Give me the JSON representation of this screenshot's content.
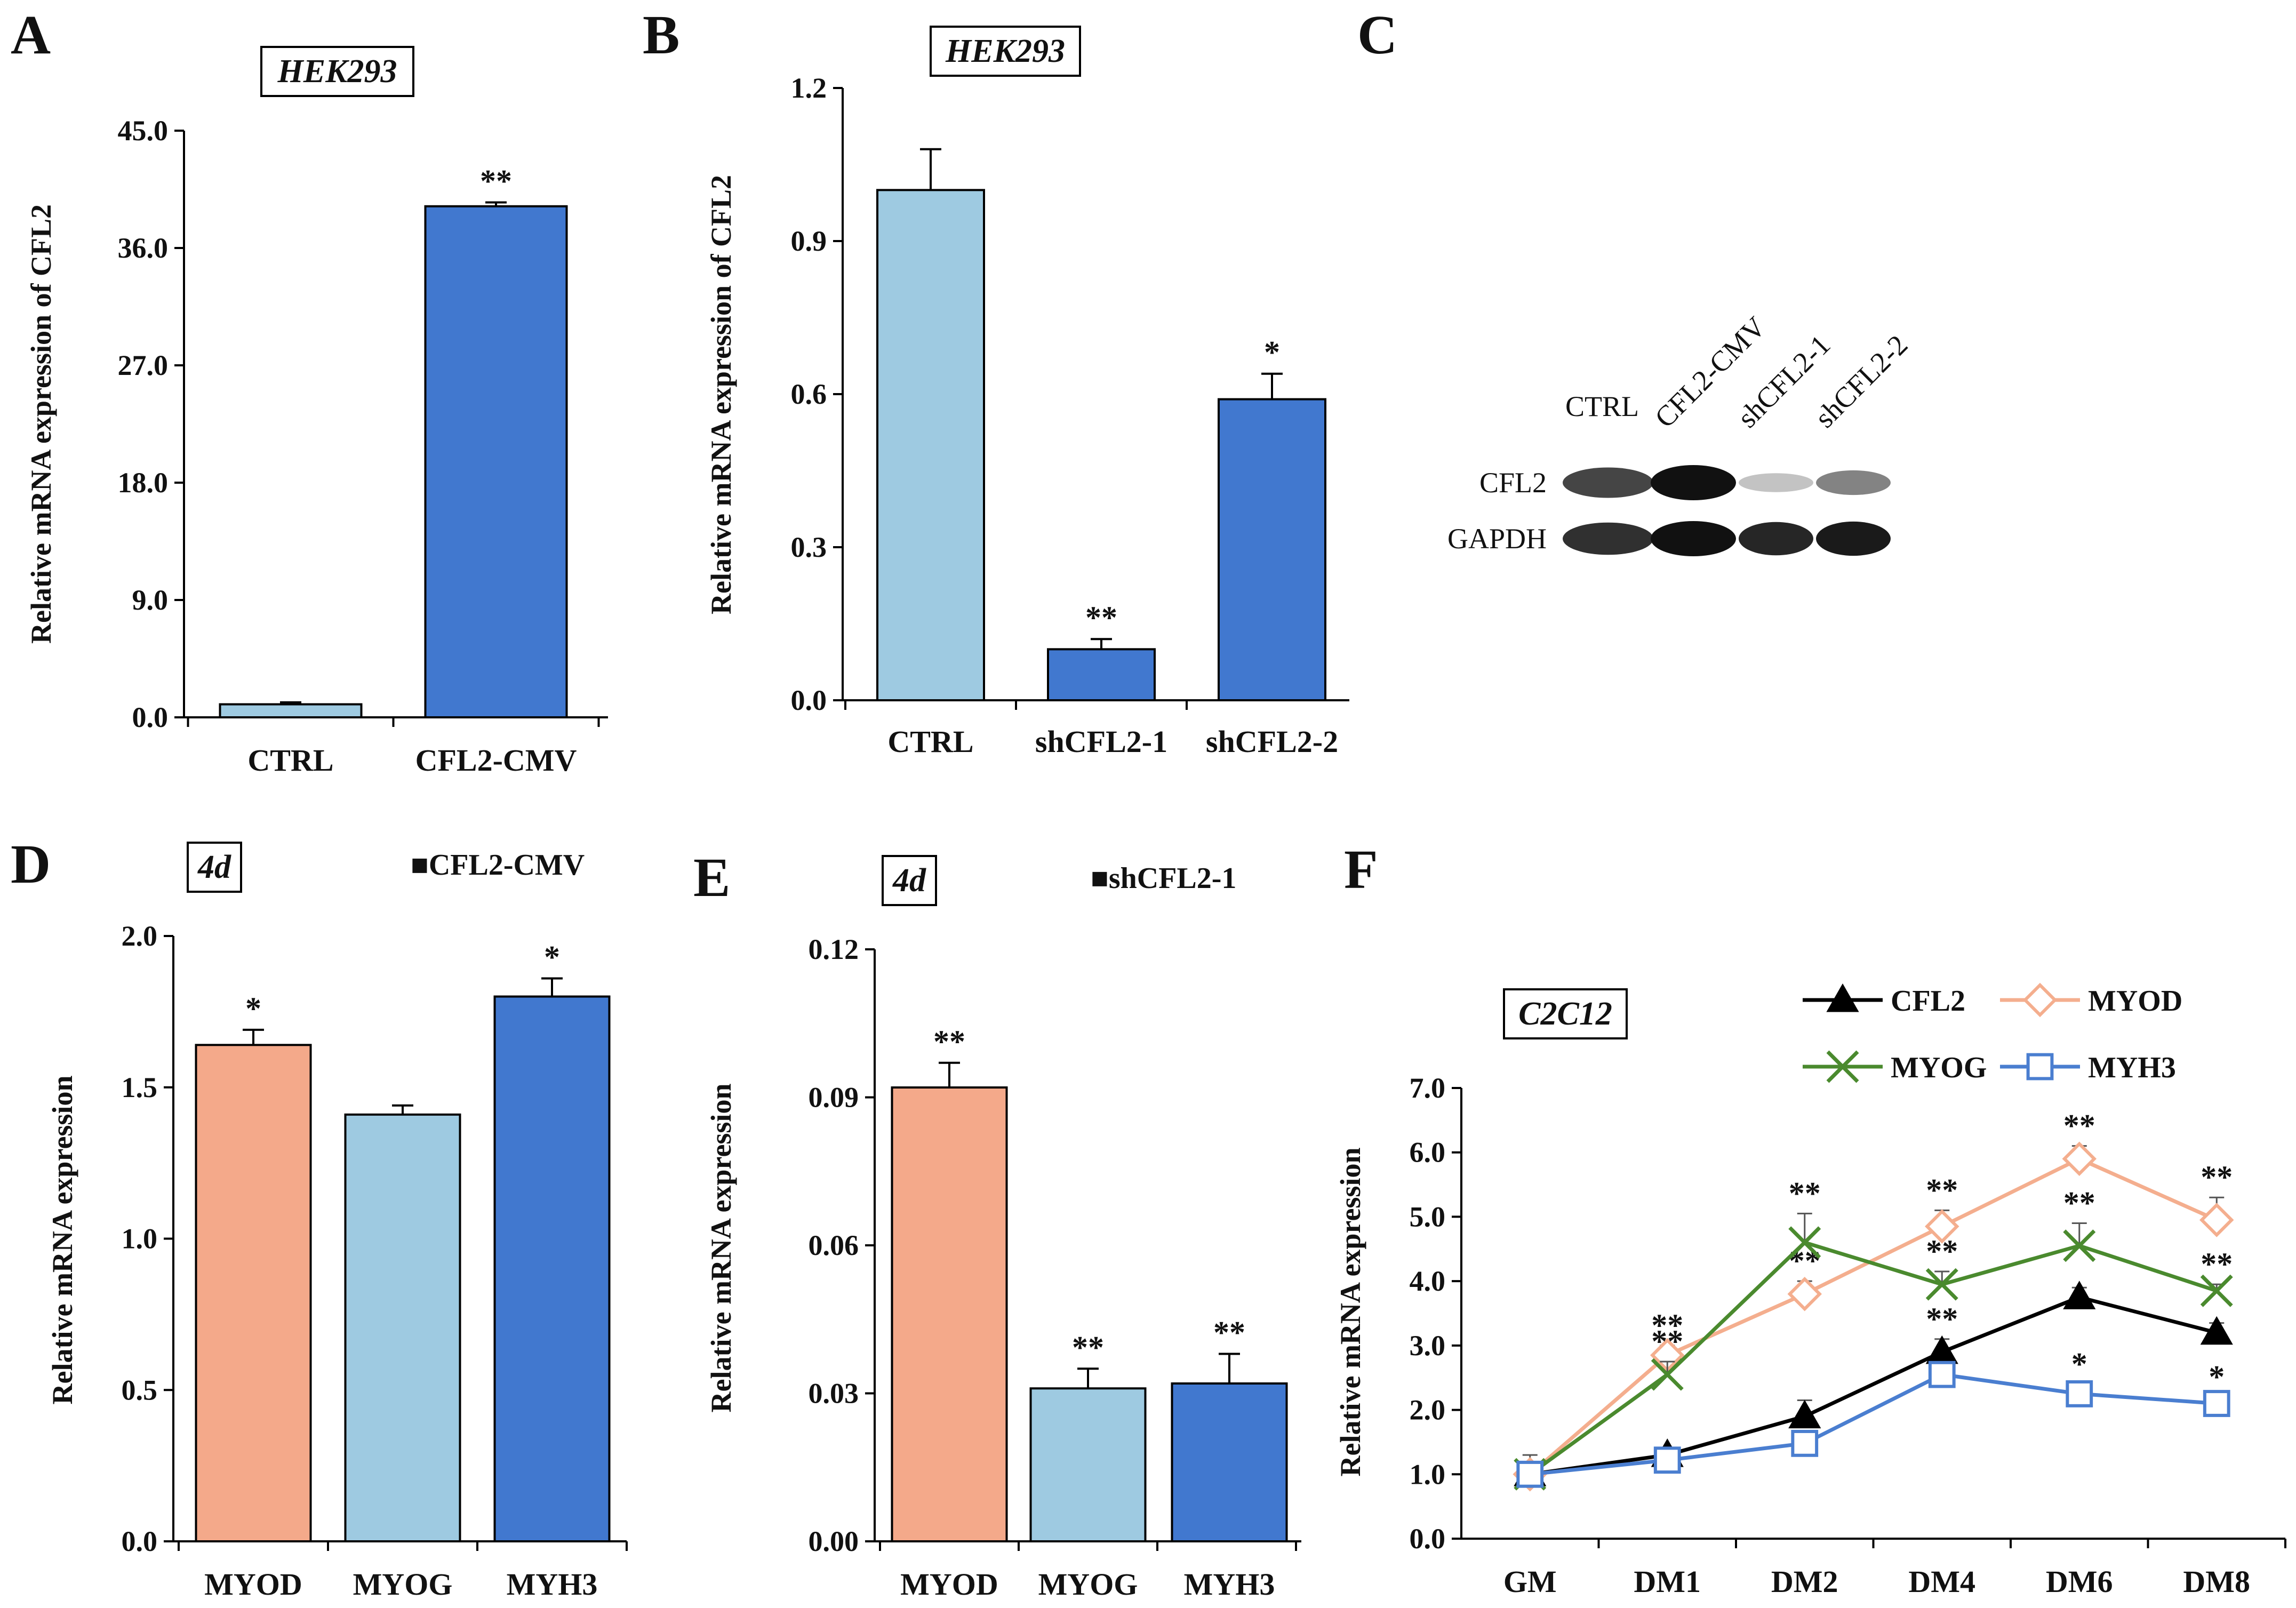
{
  "colors": {
    "light_blue": "#9ecae1",
    "dark_blue": "#4178cf",
    "salmon": "#f4a98a",
    "black": "#000000",
    "green": "#4a8a2e",
    "orange_line": "#f4ae8e",
    "blue_line": "#4a7ed0",
    "band": "#111111"
  },
  "chart_data": [
    {
      "id": "A",
      "type": "bar",
      "cell_label": "HEK293",
      "ylabel": "Relative mRNA expression of CFL2",
      "ylim": [
        0,
        45
      ],
      "yticks": [
        "0.0",
        "9.0",
        "18.0",
        "27.0",
        "36.0",
        "45.0"
      ],
      "categories": [
        "CTRL",
        "CFL2-CMV"
      ],
      "values": [
        1.0,
        39.2
      ],
      "errors": [
        0.15,
        0.3
      ],
      "colors": [
        "light_blue",
        "dark_blue"
      ],
      "significance": [
        "",
        "**"
      ]
    },
    {
      "id": "B",
      "type": "bar",
      "cell_label": "HEK293",
      "ylabel": "Relative mRNA expression of CFL2",
      "ylim": [
        0,
        1.2
      ],
      "yticks": [
        "0.0",
        "0.3",
        "0.6",
        "0.9",
        "1.2"
      ],
      "categories": [
        "CTRL",
        "shCFL2-1",
        "shCFL2-2"
      ],
      "values": [
        1.0,
        0.1,
        0.59
      ],
      "errors": [
        0.08,
        0.02,
        0.05
      ],
      "colors": [
        "light_blue",
        "dark_blue",
        "dark_blue"
      ],
      "significance": [
        "",
        "**",
        "*"
      ]
    },
    {
      "id": "D",
      "type": "bar",
      "cell_label": "4d",
      "legend": "■CFL2-CMV",
      "ylabel": "Relative mRNA expression",
      "ylim": [
        0,
        2.0
      ],
      "yticks": [
        "0.0",
        "0.5",
        "1.0",
        "1.5",
        "2.0"
      ],
      "categories": [
        "MYOD",
        "MYOG",
        "MYH3"
      ],
      "values": [
        1.64,
        1.41,
        1.8
      ],
      "errors": [
        0.05,
        0.03,
        0.06
      ],
      "colors": [
        "salmon",
        "light_blue",
        "dark_blue"
      ],
      "significance": [
        "*",
        "",
        "*"
      ]
    },
    {
      "id": "E",
      "type": "bar",
      "cell_label": "4d",
      "legend": "■shCFL2-1",
      "ylabel": "Relative mRNA expression",
      "ylim": [
        0,
        0.12
      ],
      "yticks": [
        "0.00",
        "0.03",
        "0.06",
        "0.09",
        "0.12"
      ],
      "categories": [
        "MYOD",
        "MYOG",
        "MYH3"
      ],
      "values": [
        0.092,
        0.031,
        0.032
      ],
      "errors": [
        0.005,
        0.004,
        0.006
      ],
      "colors": [
        "salmon",
        "light_blue",
        "dark_blue"
      ],
      "significance": [
        "**",
        "**",
        "**"
      ]
    },
    {
      "id": "F",
      "type": "line",
      "cell_label": "C2C12",
      "ylabel": "Relative mRNA expression",
      "ylim": [
        0,
        7.0
      ],
      "yticks": [
        "0.0",
        "1.0",
        "2.0",
        "3.0",
        "4.0",
        "5.0",
        "6.0",
        "7.0"
      ],
      "categories": [
        "GM",
        "DM1",
        "DM2",
        "DM4",
        "DM6",
        "DM8"
      ],
      "series": [
        {
          "name": "CFL2",
          "color": "black",
          "marker": "triangle",
          "values": [
            1.0,
            1.3,
            1.9,
            2.9,
            3.75,
            3.2
          ],
          "errors": [
            0.3,
            0.1,
            0.25,
            0.2,
            0.15,
            0.15
          ],
          "significance": [
            "",
            "",
            "",
            "**",
            "",
            ""
          ]
        },
        {
          "name": "MYOD",
          "color": "orange_line",
          "marker": "diamond",
          "values": [
            1.0,
            2.85,
            3.8,
            4.85,
            5.9,
            4.95
          ],
          "errors": [
            0.1,
            0.15,
            0.2,
            0.25,
            0.2,
            0.35
          ],
          "significance": [
            "",
            "**",
            "**",
            "**",
            "**",
            "**"
          ]
        },
        {
          "name": "MYOG",
          "color": "green",
          "marker": "x",
          "values": [
            1.0,
            2.55,
            4.6,
            3.95,
            4.55,
            3.85
          ],
          "errors": [
            0.1,
            0.2,
            0.45,
            0.2,
            0.35,
            0.1
          ],
          "significance": [
            "",
            "**",
            "**",
            "**",
            "**",
            "**"
          ]
        },
        {
          "name": "MYH3",
          "color": "blue_line",
          "marker": "square",
          "values": [
            1.0,
            1.22,
            1.48,
            2.55,
            2.25,
            2.1
          ],
          "errors": [
            0.1,
            0.1,
            0.1,
            0.1,
            0.15,
            0.1
          ],
          "significance": [
            "",
            "",
            "",
            "",
            "*",
            "*"
          ]
        }
      ]
    }
  ],
  "blot": {
    "letter": "C",
    "lane_labels": [
      "CTRL",
      "CFL2-CMV",
      "shCFL2-1",
      "shCFL2-2"
    ],
    "rows": [
      {
        "label": "CFL2",
        "intensities": [
          0.75,
          1.0,
          0.15,
          0.45
        ]
      },
      {
        "label": "GAPDH",
        "intensities": [
          0.85,
          1.0,
          0.9,
          0.95
        ]
      }
    ]
  }
}
